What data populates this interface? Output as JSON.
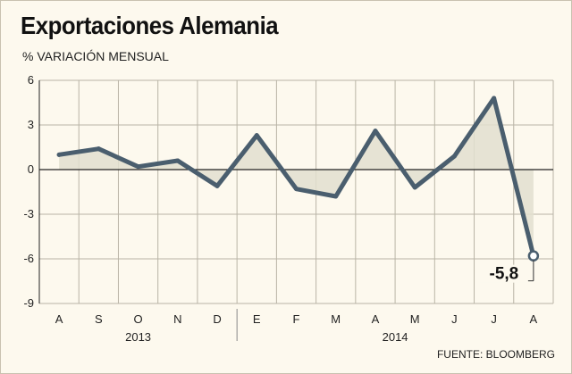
{
  "header": {
    "title": "Exportaciones Alemania",
    "subtitle": "% VARIACIÓN MENSUAL"
  },
  "source": "FUENTE: BLOOMBERG",
  "colors": {
    "line": "#4a5e6e",
    "fill": "#e2dfcf",
    "grid": "#b9b4a6",
    "zero": "#222222"
  },
  "chart_data": {
    "type": "line",
    "title": "Exportaciones Alemania",
    "subtitle": "% VARIACIÓN MENSUAL",
    "categories": [
      "A",
      "S",
      "O",
      "N",
      "D",
      "E",
      "F",
      "M",
      "A",
      "M",
      "J",
      "J",
      "A"
    ],
    "year_labels": [
      {
        "label": "2013",
        "from": 0,
        "to": 4
      },
      {
        "label": "2014",
        "from": 5,
        "to": 12
      }
    ],
    "values": [
      1.0,
      1.4,
      0.2,
      0.6,
      -1.1,
      2.3,
      -1.3,
      -1.8,
      2.6,
      -1.2,
      0.9,
      4.8,
      -5.8
    ],
    "ylim": [
      -9,
      6
    ],
    "yticks": [
      6,
      3,
      0,
      -3,
      -6,
      -9
    ],
    "grid": true,
    "annotation": {
      "index": 12,
      "label": "-5,8"
    }
  }
}
